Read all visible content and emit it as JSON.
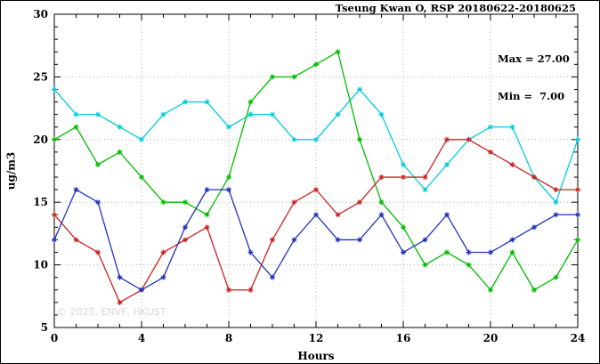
{
  "chart_data": {
    "type": "line",
    "title": "Tseung Kwan O, RSP 20180622-20180625",
    "xlabel": "Hours",
    "ylabel": "ug/m3",
    "xlim": [
      0,
      24
    ],
    "ylim": [
      5,
      30
    ],
    "xticks": [
      0,
      4,
      8,
      12,
      16,
      20,
      24
    ],
    "yticks": [
      5,
      10,
      15,
      20,
      25,
      30
    ],
    "minor_tick_step_x": 1,
    "minor_tick_step_y": 1,
    "grid": true,
    "legend_position": "none",
    "annotations": [
      "Max = 27.00",
      "Min =  7.00"
    ],
    "watermark": "© 2025, ENVF, HKUST",
    "x": [
      0,
      1,
      2,
      3,
      4,
      5,
      6,
      7,
      8,
      9,
      10,
      11,
      12,
      13,
      14,
      15,
      16,
      17,
      18,
      19,
      20,
      21,
      22,
      23,
      24
    ],
    "series": [
      {
        "name": "line-cyan",
        "color": "#00ccdd",
        "values": [
          24,
          22,
          22,
          21,
          20,
          22,
          23,
          23,
          21,
          22,
          22,
          20,
          20,
          22,
          24,
          22,
          18,
          16,
          18,
          20,
          21,
          21,
          17,
          15,
          20
        ]
      },
      {
        "name": "line-green",
        "color": "#00bb00",
        "values": [
          20,
          21,
          18,
          19,
          17,
          15,
          15,
          14,
          17,
          23,
          25,
          25,
          26,
          27,
          20,
          15,
          13,
          10,
          11,
          10,
          8,
          11,
          8,
          9,
          12
        ]
      },
      {
        "name": "line-red",
        "color": "#cc2222",
        "values": [
          14,
          12,
          11,
          7,
          8,
          11,
          12,
          13,
          8,
          8,
          12,
          15,
          16,
          14,
          15,
          17,
          17,
          17,
          20,
          20,
          19,
          18,
          17,
          16,
          16
        ]
      },
      {
        "name": "line-blue",
        "color": "#2233bb",
        "values": [
          12,
          16,
          15,
          9,
          8,
          9,
          13,
          16,
          16,
          11,
          9,
          12,
          14,
          12,
          12,
          14,
          11,
          12,
          14,
          11,
          11,
          12,
          13,
          14,
          14
        ]
      }
    ],
    "colors": {
      "grid": "#9dbb9d",
      "axis": "#000000"
    }
  }
}
